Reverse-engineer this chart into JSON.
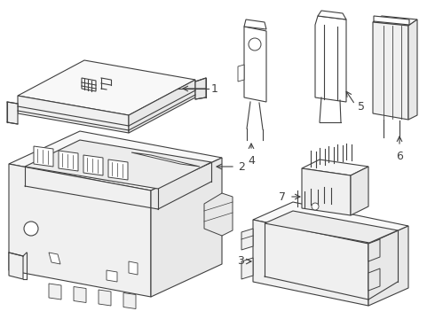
{
  "background_color": "#ffffff",
  "line_color": "#404040",
  "line_width": 0.8,
  "fig_width": 4.9,
  "fig_height": 3.6,
  "dpi": 100,
  "face_color_top": "#f8f8f8",
  "face_color_front": "#f0f0f0",
  "face_color_right": "#e8e8e8",
  "face_color_inner": "#ececec"
}
